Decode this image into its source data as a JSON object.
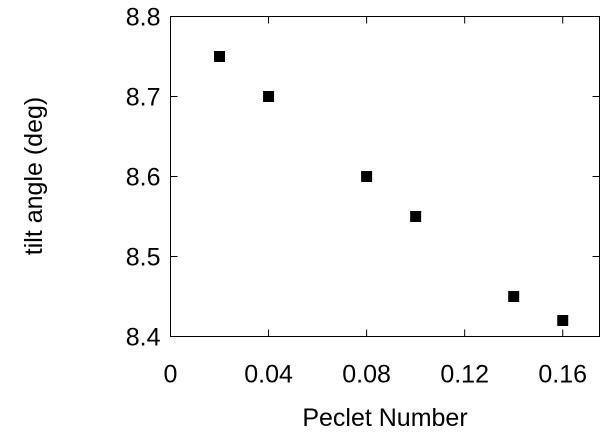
{
  "chart_data": {
    "type": "scatter",
    "title": "",
    "xlabel": "Peclet Number",
    "ylabel": "tilt angle (deg)",
    "xlim": [
      0,
      0.175
    ],
    "ylim": [
      8.4,
      8.8
    ],
    "x_ticks": [
      0,
      0.04,
      0.08,
      0.12,
      0.16
    ],
    "x_tick_labels": [
      "0",
      "0.04",
      "0.08",
      "0.12",
      "0.16"
    ],
    "y_ticks": [
      8.4,
      8.5,
      8.6,
      8.7,
      8.8
    ],
    "y_tick_labels": [
      "8.4",
      "8.5",
      "8.6",
      "8.7",
      "8.8"
    ],
    "grid": false,
    "marker": "square",
    "marker_color": "#000000",
    "series": [
      {
        "x": [
          0.02,
          0.04,
          0.08,
          0.1,
          0.14,
          0.16
        ],
        "y": [
          8.75,
          8.7,
          8.6,
          8.55,
          8.45,
          8.42
        ]
      }
    ]
  }
}
